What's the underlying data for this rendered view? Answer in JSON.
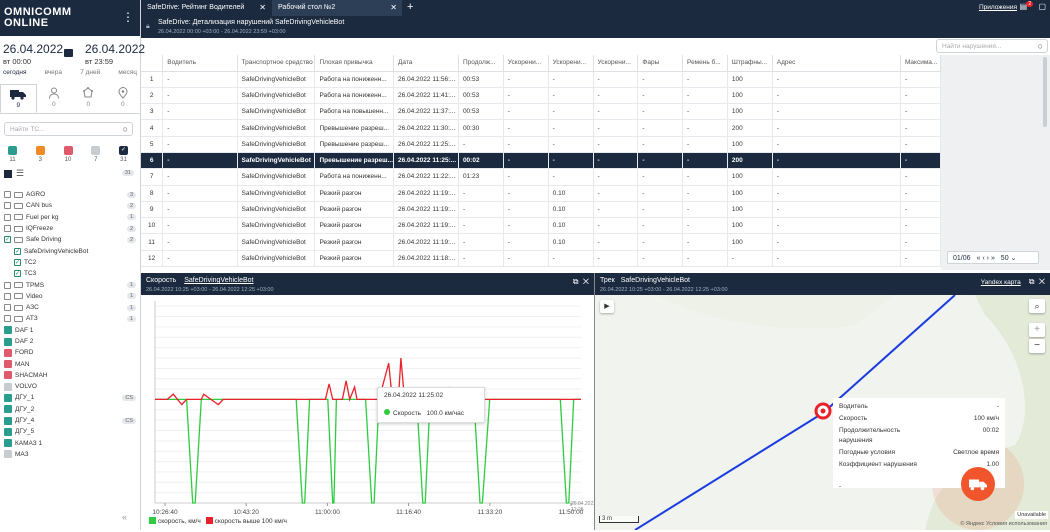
{
  "sidebar": {
    "logo": "OMNICOMM\nONLINE",
    "date_from": {
      "date": "26.04.2022",
      "time": "вт 00:00"
    },
    "date_to": {
      "date": "26.04.2022",
      "time": "вт 23:59"
    },
    "period": [
      "сегодня",
      "вчера",
      "7 дней",
      "месяц"
    ],
    "tabs": [
      {
        "icon": "truck-icon",
        "count": "9"
      },
      {
        "icon": "person-icon",
        "count": "0"
      },
      {
        "icon": "geofence-icon",
        "count": "0"
      },
      {
        "icon": "location-icon",
        "count": "0"
      }
    ],
    "search_placeholder": "Найти ТС...",
    "color_filters": [
      {
        "color": "#2a9d8f",
        "count": "11"
      },
      {
        "color": "#f08a24",
        "count": "3"
      },
      {
        "color": "#e05a6d",
        "count": "10"
      },
      {
        "color": "#c7ccd1",
        "count": "7"
      },
      {
        "color": "#1b2a3f",
        "count": "31"
      }
    ],
    "total_count": "31",
    "tree": [
      {
        "type": "folder",
        "label": "AGRO",
        "count": "3"
      },
      {
        "type": "folder",
        "label": "CAN bus",
        "count": "2"
      },
      {
        "type": "folder",
        "label": "Fuel per kg",
        "count": "1"
      },
      {
        "type": "folder",
        "label": "IQFreeze",
        "count": "2"
      },
      {
        "type": "folder-checked",
        "label": "Safe Driving",
        "count": "2"
      },
      {
        "type": "vehicle-checked",
        "label": "SafeDrivingVehicleBot",
        "count": ""
      },
      {
        "type": "vehicle-checked",
        "label": "TC2",
        "count": ""
      },
      {
        "type": "vehicle-checked",
        "label": "TC3",
        "count": ""
      },
      {
        "type": "folder",
        "label": "TPMS",
        "count": "1"
      },
      {
        "type": "folder",
        "label": "Video",
        "count": "1"
      },
      {
        "type": "folder",
        "label": "АЗС",
        "count": "1"
      },
      {
        "type": "folder",
        "label": "АТЗ",
        "count": "1"
      },
      {
        "type": "unit",
        "label": "DAF 1",
        "count": "",
        "color": "#2a9d8f"
      },
      {
        "type": "unit",
        "label": "DAF 2",
        "count": "",
        "color": "#2a9d8f"
      },
      {
        "type": "unit",
        "label": "FORD",
        "count": "",
        "color": "#e05a6d"
      },
      {
        "type": "unit",
        "label": "MAN",
        "count": "",
        "color": "#e05a6d"
      },
      {
        "type": "unit",
        "label": "SHACMAH",
        "count": "",
        "color": "#e05a6d"
      },
      {
        "type": "unit",
        "label": "VOLVO",
        "count": "",
        "color": "#c7ccd1"
      },
      {
        "type": "unit",
        "label": "ДГУ_1",
        "count": "CS",
        "color": "#2a9d8f"
      },
      {
        "type": "unit",
        "label": "ДГУ_2",
        "count": "",
        "color": "#2a9d8f"
      },
      {
        "type": "unit",
        "label": "ДГУ_4",
        "count": "CS",
        "color": "#2a9d8f"
      },
      {
        "type": "unit",
        "label": "ДГУ_5",
        "count": "",
        "color": "#2a9d8f"
      },
      {
        "type": "unit",
        "label": "КАМАЗ 1",
        "count": "",
        "color": "#2a9d8f"
      },
      {
        "type": "unit",
        "label": "МАЗ",
        "count": "",
        "color": "#c7ccd1"
      }
    ]
  },
  "tabs": [
    {
      "label": "SafeDrive: Рейтинг Водителей",
      "active": false
    },
    {
      "label": "Рабочий стол №2",
      "active": true
    }
  ],
  "header": {
    "apps": "Приложения",
    "notif_count": "2"
  },
  "subheader": {
    "title": "SafeDrive: Детализация нарушений    SafeDrivingVehicleBot",
    "range": "26.04.2022 00:00 +03:00 - 26.04.2022 23:59 +03:00"
  },
  "table": {
    "search_placeholder": "Найти нарушения...",
    "columns": [
      "",
      "Водитель",
      "Транспортное средство",
      "Плохая привычка",
      "Дата",
      "Продолж...",
      "Ускорени...",
      "Ускорени...",
      "Ускорени...",
      "Фары",
      "Ремень б...",
      "Штрафны...",
      "Адрес",
      "Максима..."
    ],
    "rows": [
      [
        "1",
        "-",
        "SafeDrivingVehicleBot",
        "Работа на пониженн...",
        "26.04.2022 11:56:...",
        "00:53",
        "-",
        "-",
        "-",
        "-",
        "-",
        "100",
        "-",
        "-"
      ],
      [
        "2",
        "-",
        "SafeDrivingVehicleBot",
        "Работа на пониженн...",
        "26.04.2022 11:41:...",
        "00:53",
        "-",
        "-",
        "-",
        "-",
        "-",
        "100",
        "-",
        "-"
      ],
      [
        "3",
        "-",
        "SafeDrivingVehicleBot",
        "Работа на повышенн...",
        "26.04.2022 11:37:...",
        "00:53",
        "-",
        "-",
        "-",
        "-",
        "-",
        "100",
        "-",
        "-"
      ],
      [
        "4",
        "-",
        "SafeDrivingVehicleBot",
        "Превышение разреш...",
        "26.04.2022 11:30:...",
        "00:30",
        "-",
        "-",
        "-",
        "-",
        "-",
        "200",
        "-",
        "-"
      ],
      [
        "5",
        "-",
        "SafeDrivingVehicleBot",
        "Превышение разреш...",
        "26.04.2022 11:25:...",
        "-",
        "-",
        "-",
        "-",
        "-",
        "-",
        "100",
        "-",
        "-"
      ],
      [
        "6",
        "-",
        "SafeDrivingVehicleBot",
        "Превышение разреш...",
        "26.04.2022 11:25:...",
        "00:02",
        "-",
        "-",
        "-",
        "-",
        "-",
        "200",
        "-",
        "-"
      ],
      [
        "7",
        "-",
        "SafeDrivingVehicleBot",
        "Работа на пониженн...",
        "26.04.2022 11:22:...",
        "01:23",
        "-",
        "-",
        "-",
        "-",
        "-",
        "100",
        "-",
        "-"
      ],
      [
        "8",
        "-",
        "SafeDrivingVehicleBot",
        "Резкий разгон",
        "26.04.2022 11:19:...",
        "-",
        "-",
        "0.10",
        "-",
        "-",
        "-",
        "100",
        "-",
        "-"
      ],
      [
        "9",
        "-",
        "SafeDrivingVehicleBot",
        "Резкий разгон",
        "26.04.2022 11:19:...",
        "-",
        "-",
        "0.10",
        "-",
        "-",
        "-",
        "100",
        "-",
        "-"
      ],
      [
        "10",
        "-",
        "SafeDrivingVehicleBot",
        "Резкий разгон",
        "26.04.2022 11:19:...",
        "-",
        "-",
        "0.10",
        "-",
        "-",
        "-",
        "100",
        "-",
        "-"
      ],
      [
        "11",
        "-",
        "SafeDrivingVehicleBot",
        "Резкий разгон",
        "26.04.2022 11:19:...",
        "-",
        "-",
        "0.10",
        "-",
        "-",
        "-",
        "100",
        "-",
        "-"
      ],
      [
        "12",
        "-",
        "SafeDrivingVehicleBot",
        "Резкий разгон",
        "26.04.2022 11:18:...",
        "-",
        "-",
        "-",
        "-",
        "-",
        "-",
        "-",
        "-",
        "-"
      ]
    ],
    "selected_row": 5,
    "pager": "01/06",
    "page_size": "50"
  },
  "speed_panel": {
    "title": "Скорость",
    "vehicle": "SafeDrivingVehicleBot",
    "range": "26.04.2022 10:25 +03:00 - 26.04.2022 12:25 +03:00",
    "tooltip_time": "26.04.2022    11:25:02",
    "tooltip_label": "Скорость",
    "tooltip_value": "100.0 км/час",
    "legend_speed": "скорость, км/ч",
    "legend_over": "скорость выше 100 км/ч",
    "end_label": "26.04.2022\n12:25"
  },
  "chart_data": {
    "type": "line",
    "x_ticks": [
      "10:26:40",
      "10:43:20",
      "11:00:00",
      "11:16:40",
      "11:33:20",
      "11:50:00"
    ],
    "y_ticks": [
      0,
      10,
      20,
      30,
      40,
      50,
      60,
      70,
      80,
      90,
      100,
      110,
      120,
      130,
      140,
      150,
      160,
      170,
      180,
      190
    ],
    "ylim": [
      0,
      195
    ],
    "colors": {
      "speed": "#2ecc40",
      "over": "#e8212a"
    },
    "series": [
      {
        "name": "скорость, км/ч",
        "points": [
          [
            0,
            100
          ],
          [
            26,
            100
          ],
          [
            31,
            0
          ],
          [
            33,
            0
          ],
          [
            38,
            100
          ],
          [
            116,
            100
          ],
          [
            121,
            0
          ],
          [
            123,
            0
          ],
          [
            127,
            100
          ],
          [
            142,
            100
          ],
          [
            146,
            0
          ],
          [
            147,
            0
          ],
          [
            149,
            100
          ],
          [
            173,
            100
          ],
          [
            178,
            0
          ],
          [
            180,
            0
          ],
          [
            184,
            100
          ],
          [
            215,
            100
          ],
          [
            220,
            0
          ],
          [
            222,
            0
          ],
          [
            226,
            100
          ],
          [
            262,
            100
          ],
          [
            267,
            0
          ],
          [
            269,
            0
          ],
          [
            275,
            100
          ],
          [
            333,
            100
          ],
          [
            338,
            0
          ],
          [
            340,
            0
          ],
          [
            344,
            100
          ],
          [
            350,
            100
          ]
        ]
      },
      {
        "name": "скорость выше 100 км/ч",
        "points": [
          [
            0,
            100
          ],
          [
            10,
            100
          ],
          [
            15,
            105
          ],
          [
            22,
            95
          ],
          [
            26,
            100
          ],
          [
            38,
            100
          ],
          [
            40,
            105
          ],
          [
            52,
            95
          ],
          [
            56,
            100
          ],
          [
            116,
            100
          ],
          [
            127,
            100
          ],
          [
            140,
            100
          ],
          [
            143,
            115
          ],
          [
            146,
            100
          ],
          [
            149,
            100
          ],
          [
            154,
            100
          ],
          [
            157,
            118
          ],
          [
            160,
            100
          ],
          [
            164,
            112
          ],
          [
            166,
            100
          ],
          [
            184,
            100
          ],
          [
            192,
            135
          ],
          [
            195,
            100
          ],
          [
            200,
            100
          ],
          [
            202,
            140
          ],
          [
            205,
            100
          ],
          [
            208,
            110
          ],
          [
            210,
            100
          ],
          [
            215,
            100
          ],
          [
            226,
            100
          ],
          [
            240,
            100
          ],
          [
            242,
            112
          ],
          [
            244,
            100
          ],
          [
            250,
            100
          ],
          [
            252,
            110
          ],
          [
            254,
            100
          ],
          [
            262,
            100
          ],
          [
            275,
            100
          ],
          [
            300,
            100
          ],
          [
            310,
            100
          ],
          [
            350,
            100
          ]
        ]
      }
    ]
  },
  "track_panel": {
    "title": "Трек",
    "vehicle": "SafeDrivingVehicleBot",
    "range": "26.04.2022 10:25 +03:00 - 26.04.2022 12:25 +03:00",
    "map_provider": "Yandex карта",
    "info": [
      {
        "label": "Водитель",
        "value": "-"
      },
      {
        "label": "Скорость",
        "value": "100 км/ч"
      },
      {
        "label": "Продолжительность нарушения",
        "value": "00:02"
      },
      {
        "label": "Погодные условия",
        "value": "Светлое время"
      },
      {
        "label": "Коэффициент нарушения",
        "value": "1.00"
      },
      {
        "label": "-",
        "value": ""
      }
    ],
    "scale": "3 m",
    "unavailable": "Unavailable",
    "terms": "© Яндекс Условия использования"
  }
}
